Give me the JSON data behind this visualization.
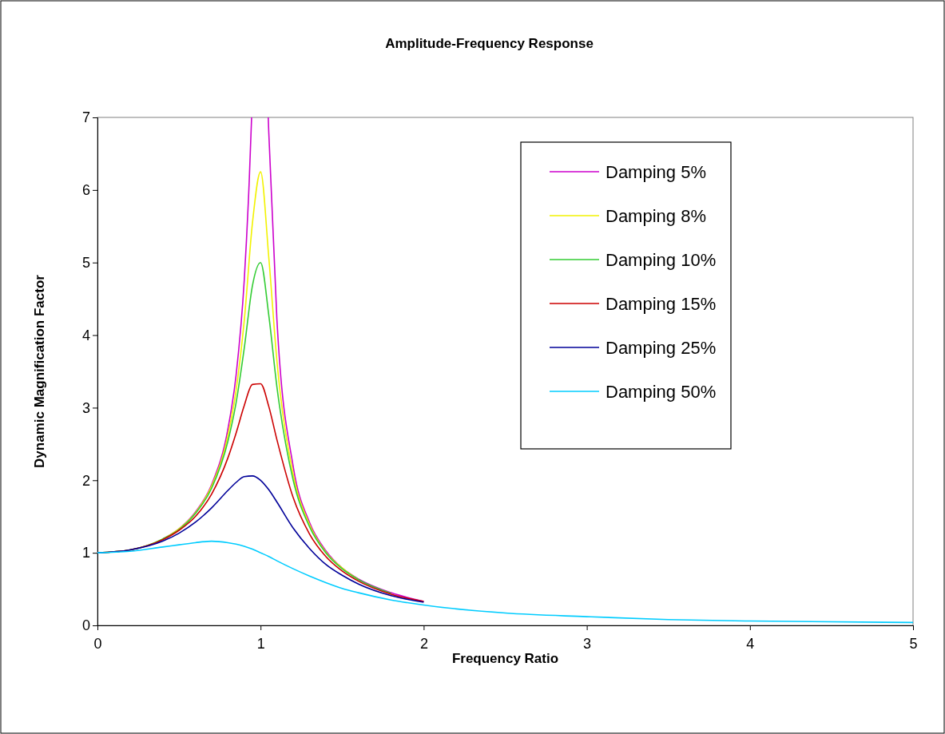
{
  "chart_data": {
    "type": "line",
    "title": "Amplitude-Frequency Response",
    "xlabel": "Frequency Ratio",
    "ylabel": "Dynamic Magnification Factor",
    "x": [
      0,
      0.2,
      0.4,
      0.5,
      0.6,
      0.7,
      0.8,
      0.85,
      0.9,
      0.95,
      1,
      1.05,
      1.1,
      1.2,
      1.3,
      1.4,
      1.5,
      1.6,
      1.8,
      2,
      2.5,
      3,
      3.5,
      4,
      5
    ],
    "series": [
      {
        "name": "Damping 5%",
        "color": "#cc00cc",
        "x": [
          0.4,
          0.5,
          0.6,
          0.7,
          0.8,
          0.85,
          0.9,
          0.93,
          0.945,
          1,
          1.047,
          1.05,
          1.1,
          1.2,
          1.3,
          1.4,
          1.5,
          1.6,
          1.8,
          2
        ],
        "values": [
          1.19,
          1.33,
          1.56,
          1.94,
          2.71,
          3.45,
          4.76,
          6.1,
          7,
          null,
          7,
          6.81,
          4.22,
          2.19,
          1.42,
          1.03,
          0.79,
          0.64,
          0.45,
          0.33
        ]
      },
      {
        "name": "Damping 8%",
        "color": "#f2f200",
        "values": [
          1,
          1.04,
          1.19,
          1.33,
          1.55,
          1.92,
          2.62,
          3.24,
          4.2,
          5.54,
          6.25,
          5.08,
          3.65,
          2.08,
          1.39,
          1.01,
          0.79,
          0.63,
          null,
          null,
          null,
          null,
          null,
          null,
          null
        ]
      },
      {
        "name": "Damping 10%",
        "color": "#33cc33",
        "values": [
          1,
          1.04,
          1.19,
          1.32,
          1.54,
          1.89,
          2.54,
          3.07,
          3.82,
          4.68,
          5,
          4.28,
          3.29,
          2,
          1.36,
          1,
          0.78,
          0.63,
          0.44,
          null,
          null,
          null,
          null,
          null,
          null
        ]
      },
      {
        "name": "Damping 15%",
        "color": "#cc0000",
        "values": [
          1,
          1.04,
          1.18,
          1.31,
          1.5,
          1.81,
          2.31,
          2.65,
          3.03,
          3.32,
          3.33,
          3.02,
          2.56,
          1.76,
          1.26,
          0.95,
          0.75,
          0.61,
          0.43,
          0.33,
          null,
          null,
          null,
          null,
          null
        ]
      },
      {
        "name": "Damping 25%",
        "color": "#000099",
        "values": [
          1,
          1.04,
          1.16,
          1.27,
          1.42,
          1.62,
          1.86,
          1.97,
          2.05,
          2.06,
          2,
          1.87,
          1.7,
          1.34,
          1.06,
          0.84,
          0.69,
          0.57,
          0.41,
          0.32,
          null,
          null,
          null,
          null,
          null
        ]
      },
      {
        "name": "Damping 50%",
        "color": "#00ccff",
        "values": [
          1,
          1.02,
          1.08,
          1.11,
          1.14,
          1.16,
          1.14,
          1.12,
          1.09,
          1.05,
          1,
          0.95,
          0.89,
          0.78,
          0.68,
          0.59,
          0.51,
          0.45,
          0.35,
          0.28,
          0.17,
          0.12,
          0.08,
          0.06,
          0.04
        ]
      }
    ],
    "xlim": [
      0,
      5
    ],
    "xticks": [
      0,
      1,
      2,
      3,
      4,
      5
    ],
    "ylim": [
      0,
      7
    ],
    "yticks": [
      0,
      1,
      2,
      3,
      4,
      5,
      6,
      7
    ],
    "grid": false,
    "legend": "top right",
    "marker": "none",
    "line_style": "solid"
  }
}
